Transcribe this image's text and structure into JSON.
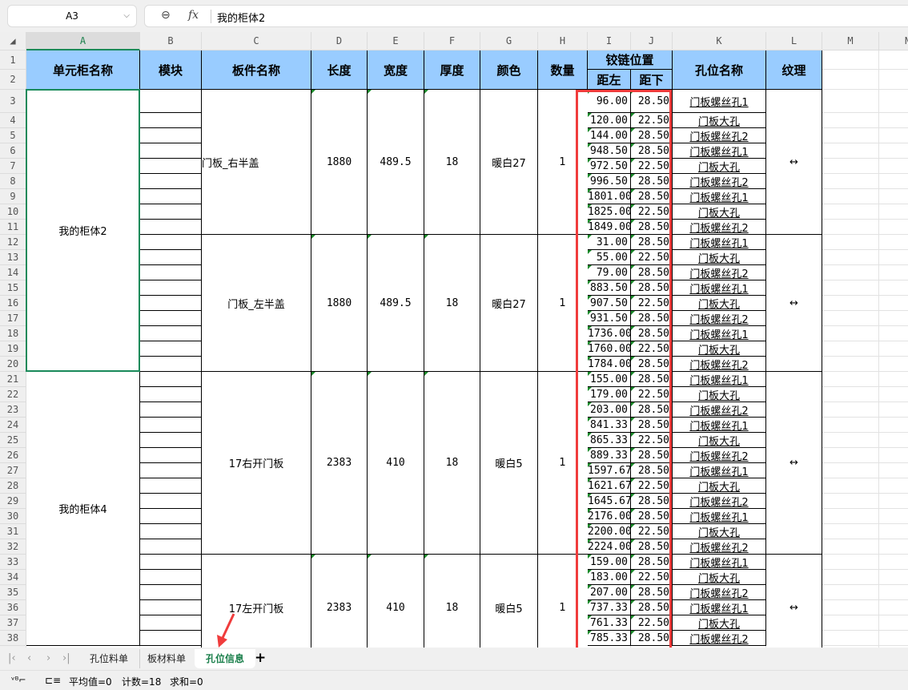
{
  "name_box": "A3",
  "formula_bar": {
    "value": "我的柜体2"
  },
  "columns": [
    "A",
    "B",
    "C",
    "D",
    "E",
    "F",
    "G",
    "H",
    "I",
    "J",
    "K",
    "L",
    "M",
    "N"
  ],
  "selected_column": "A",
  "headers": {
    "A": "单元柜名称",
    "B": "模块",
    "C": "板件名称",
    "D": "长度",
    "E": "宽度",
    "F": "厚度",
    "G": "颜色",
    "H": "数量",
    "IJ": "铰链位置",
    "I": "距左",
    "J": "距下",
    "K": "孔位名称",
    "L": "纹理"
  },
  "cabinets": [
    {
      "name": "我的柜体2",
      "from_row": 3,
      "to_row": 20
    },
    {
      "name": "我的柜体4",
      "from_row": 21,
      "to_row": 38
    }
  ],
  "panels": [
    {
      "name": "门板_右半盖",
      "length": "1880",
      "width": "489.5",
      "thickness": "18",
      "color": "暖白27",
      "qty": "1",
      "grain": "↔",
      "from_row": 3,
      "to_row": 11
    },
    {
      "name": "门板_左半盖",
      "length": "1880",
      "width": "489.5",
      "thickness": "18",
      "color": "暖白27",
      "qty": "1",
      "grain": "↔",
      "from_row": 12,
      "to_row": 20
    },
    {
      "name": "17右开门板",
      "length": "2383",
      "width": "410",
      "thickness": "18",
      "color": "暖白5",
      "qty": "1",
      "grain": "↔",
      "from_row": 21,
      "to_row": 32
    },
    {
      "name": "17左开门板",
      "length": "2383",
      "width": "410",
      "thickness": "18",
      "color": "暖白5",
      "qty": "1",
      "grain": "↔",
      "from_row": 33,
      "to_row": 38
    }
  ],
  "holes": [
    [
      "96.00",
      "28.50",
      "门板螺丝孔1"
    ],
    [
      "120.00",
      "22.50",
      "门板大孔"
    ],
    [
      "144.00",
      "28.50",
      "门板螺丝孔2"
    ],
    [
      "948.50",
      "28.50",
      "门板螺丝孔1"
    ],
    [
      "972.50",
      "22.50",
      "门板大孔"
    ],
    [
      "996.50",
      "28.50",
      "门板螺丝孔2"
    ],
    [
      "1801.00",
      "28.50",
      "门板螺丝孔1"
    ],
    [
      "1825.00",
      "22.50",
      "门板大孔"
    ],
    [
      "1849.00",
      "28.50",
      "门板螺丝孔2"
    ],
    [
      "31.00",
      "28.50",
      "门板螺丝孔1"
    ],
    [
      "55.00",
      "22.50",
      "门板大孔"
    ],
    [
      "79.00",
      "28.50",
      "门板螺丝孔2"
    ],
    [
      "883.50",
      "28.50",
      "门板螺丝孔1"
    ],
    [
      "907.50",
      "22.50",
      "门板大孔"
    ],
    [
      "931.50",
      "28.50",
      "门板螺丝孔2"
    ],
    [
      "1736.00",
      "28.50",
      "门板螺丝孔1"
    ],
    [
      "1760.00",
      "22.50",
      "门板大孔"
    ],
    [
      "1784.00",
      "28.50",
      "门板螺丝孔2"
    ],
    [
      "155.00",
      "28.50",
      "门板螺丝孔1"
    ],
    [
      "179.00",
      "22.50",
      "门板大孔"
    ],
    [
      "203.00",
      "28.50",
      "门板螺丝孔2"
    ],
    [
      "841.33",
      "28.50",
      "门板螺丝孔1"
    ],
    [
      "865.33",
      "22.50",
      "门板大孔"
    ],
    [
      "889.33",
      "28.50",
      "门板螺丝孔2"
    ],
    [
      "1597.67",
      "28.50",
      "门板螺丝孔1"
    ],
    [
      "1621.67",
      "22.50",
      "门板大孔"
    ],
    [
      "1645.67",
      "28.50",
      "门板螺丝孔2"
    ],
    [
      "2176.00",
      "28.50",
      "门板螺丝孔1"
    ],
    [
      "2200.00",
      "22.50",
      "门板大孔"
    ],
    [
      "2224.00",
      "28.50",
      "门板螺丝孔2"
    ],
    [
      "159.00",
      "28.50",
      "门板螺丝孔1"
    ],
    [
      "183.00",
      "22.50",
      "门板大孔"
    ],
    [
      "207.00",
      "28.50",
      "门板螺丝孔2"
    ],
    [
      "737.33",
      "28.50",
      "门板螺丝孔1"
    ],
    [
      "761.33",
      "22.50",
      "门板大孔"
    ],
    [
      "785.33",
      "28.50",
      "门板螺丝孔2"
    ]
  ],
  "sheet_tabs": [
    "孔位料单",
    "板材料单",
    "孔位信息"
  ],
  "active_tab": "孔位信息",
  "status": {
    "average": "平均值=0",
    "count": "计数=18",
    "sum": "求和=0"
  },
  "colors": {
    "header_fill": "#99ccff",
    "selection": "#1a8a5a",
    "highlight_box": "#f03c3c"
  }
}
